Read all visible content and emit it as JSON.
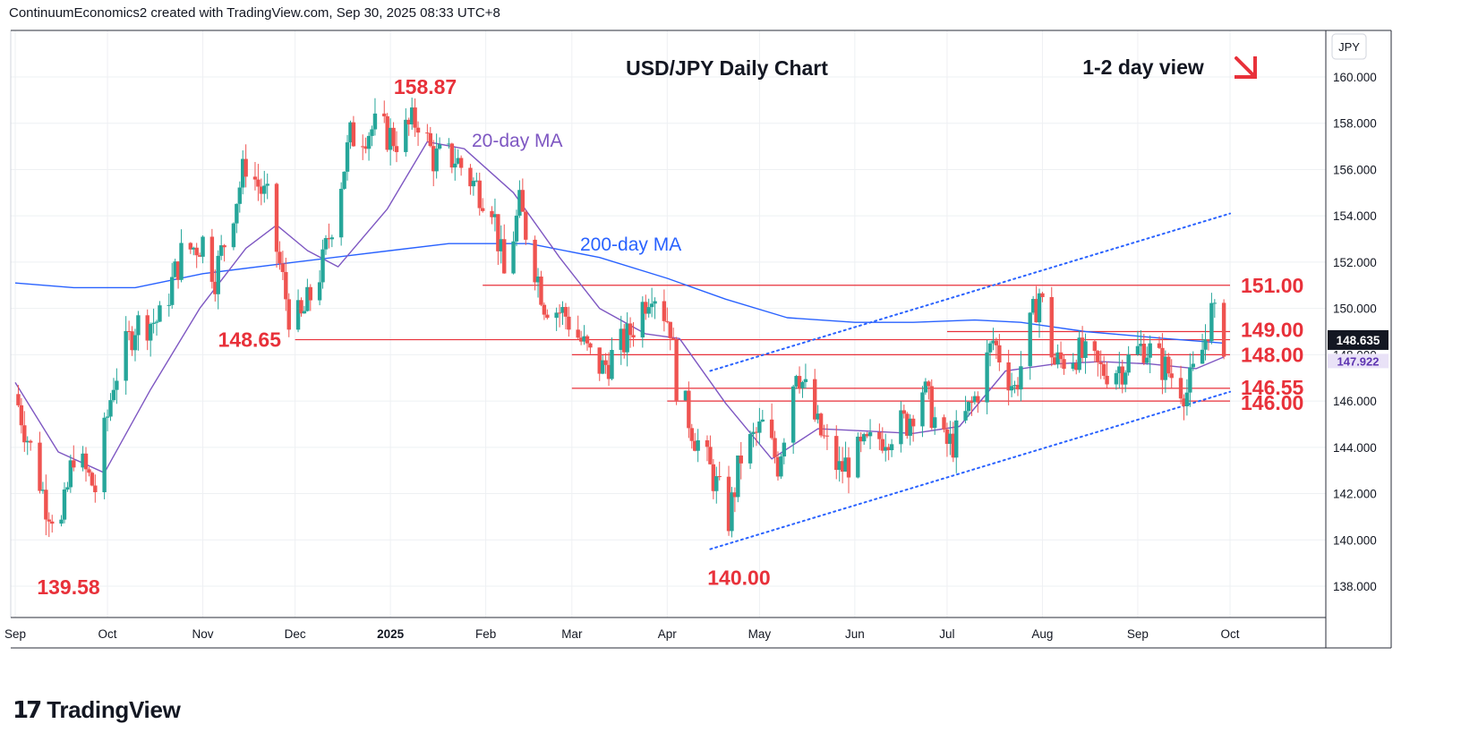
{
  "header": {
    "attribution": "ContinuumEconomics2 created with TradingView.com, Sep 30, 2025 08:33 UTC+8"
  },
  "footer": {
    "brand": "TradingView"
  },
  "colors": {
    "up": "#26a69a",
    "down": "#ef5350",
    "ma20": "#7e57c2",
    "ma200": "#2962ff",
    "level": "#e8313a",
    "label_red": "#e8313a",
    "axis_text": "#131722",
    "grid": "#eef0f3"
  },
  "chart_data": {
    "type": "candlestick",
    "title": "USD/JPY Daily Chart",
    "view_label": "1-2 day view",
    "view_arrow": "down-right-arrow",
    "currency_label": "JPY",
    "ylim": [
      136.5,
      161.5
    ],
    "y_ticks": [
      "138.000",
      "140.000",
      "142.000",
      "144.000",
      "146.000",
      "148.000",
      "150.000",
      "152.000",
      "154.000",
      "156.000",
      "158.000",
      "160.000"
    ],
    "x_ticks": [
      "Sep",
      "Oct",
      "Nov",
      "Dec",
      "2025",
      "Feb",
      "Mar",
      "Apr",
      "May",
      "Jun",
      "Jul",
      "Aug",
      "Sep",
      "Oct"
    ],
    "x_tick_dates": [
      "2024-09-01",
      "2024-10-01",
      "2024-11-01",
      "2024-12-01",
      "2025-01-01",
      "2025-02-01",
      "2025-03-01",
      "2025-04-01",
      "2025-05-01",
      "2025-06-01",
      "2025-07-01",
      "2025-08-01",
      "2025-09-01",
      "2025-10-01"
    ],
    "price_badges": [
      {
        "value": "148.635",
        "color": "#131722",
        "text_color": "#ffffff"
      },
      {
        "value": "147.922",
        "color": "#e9e2f7",
        "text_color": "#5e35b1"
      }
    ],
    "annotations": [
      {
        "text": "158.87",
        "date": "2025-01-10",
        "price": 158.87,
        "kind": "peak"
      },
      {
        "text": "139.58",
        "date": "2024-09-16",
        "price": 139.58,
        "kind": "trough"
      },
      {
        "text": "140.00",
        "date": "2025-04-22",
        "price": 140.0,
        "kind": "trough"
      },
      {
        "text": "148.65",
        "price": 148.65,
        "kind": "level-left"
      },
      {
        "text": "151.00",
        "price": 151.0,
        "kind": "level-right"
      },
      {
        "text": "149.00",
        "price": 149.0,
        "kind": "level-right"
      },
      {
        "text": "148.00",
        "price": 148.0,
        "kind": "level-right"
      },
      {
        "text": "146.55",
        "price": 146.55,
        "kind": "level-right"
      },
      {
        "text": "146.00",
        "price": 146.0,
        "kind": "level-right"
      }
    ],
    "ma_labels": [
      {
        "text": "20-day MA",
        "series": "ma20"
      },
      {
        "text": "200-day MA",
        "series": "ma200"
      }
    ],
    "horizontal_levels": [
      {
        "price": 151.0,
        "start": "2025-01-31",
        "end": "2025-10-01"
      },
      {
        "price": 148.65,
        "start": "2024-12-01",
        "end": "2025-10-01"
      },
      {
        "price": 149.0,
        "start": "2025-07-01",
        "end": "2025-10-01"
      },
      {
        "price": 148.0,
        "start": "2025-03-01",
        "end": "2025-10-01"
      },
      {
        "price": 146.55,
        "start": "2025-03-01",
        "end": "2025-10-01"
      },
      {
        "price": 146.0,
        "start": "2025-04-01",
        "end": "2025-10-01"
      }
    ],
    "trend_lines": [
      {
        "name": "channel-upper",
        "from": {
          "date": "2025-04-15",
          "price": 147.3
        },
        "to": {
          "date": "2025-10-01",
          "price": 154.1
        }
      },
      {
        "name": "channel-lower",
        "from": {
          "date": "2025-04-15",
          "price": 139.6
        },
        "to": {
          "date": "2025-10-01",
          "price": 146.4
        }
      }
    ],
    "price_anchors": [
      {
        "date": "2024-09-01",
        "price": 146.3
      },
      {
        "date": "2024-09-11",
        "price": 141.6
      },
      {
        "date": "2024-09-16",
        "price": 140.6
      },
      {
        "date": "2024-09-20",
        "price": 143.8
      },
      {
        "date": "2024-09-27",
        "price": 142.2
      },
      {
        "date": "2024-10-03",
        "price": 146.9
      },
      {
        "date": "2024-10-10",
        "price": 149.3
      },
      {
        "date": "2024-10-18",
        "price": 149.5
      },
      {
        "date": "2024-10-25",
        "price": 152.3
      },
      {
        "date": "2024-11-01",
        "price": 152.9
      },
      {
        "date": "2024-11-05",
        "price": 151.4
      },
      {
        "date": "2024-11-15",
        "price": 156.3
      },
      {
        "date": "2024-11-22",
        "price": 154.6
      },
      {
        "date": "2024-11-29",
        "price": 149.8
      },
      {
        "date": "2024-12-03",
        "price": 149.5
      },
      {
        "date": "2024-12-10",
        "price": 151.9
      },
      {
        "date": "2024-12-19",
        "price": 157.4
      },
      {
        "date": "2024-12-27",
        "price": 157.8
      },
      {
        "date": "2025-01-03",
        "price": 157.3
      },
      {
        "date": "2025-01-10",
        "price": 158.2
      },
      {
        "date": "2025-01-15",
        "price": 156.5
      },
      {
        "date": "2025-01-22",
        "price": 156.5
      },
      {
        "date": "2025-01-28",
        "price": 155.4
      },
      {
        "date": "2025-02-03",
        "price": 154.6
      },
      {
        "date": "2025-02-07",
        "price": 151.4
      },
      {
        "date": "2025-02-12",
        "price": 154.4
      },
      {
        "date": "2025-02-20",
        "price": 150.3
      },
      {
        "date": "2025-02-27",
        "price": 149.7
      },
      {
        "date": "2025-03-07",
        "price": 147.9
      },
      {
        "date": "2025-03-11",
        "price": 147.4
      },
      {
        "date": "2025-03-19",
        "price": 148.7
      },
      {
        "date": "2025-03-27",
        "price": 151.0
      },
      {
        "date": "2025-04-02",
        "price": 149.3
      },
      {
        "date": "2025-04-04",
        "price": 146.8
      },
      {
        "date": "2025-04-10",
        "price": 144.5
      },
      {
        "date": "2025-04-16",
        "price": 142.7
      },
      {
        "date": "2025-04-21",
        "price": 140.9
      },
      {
        "date": "2025-04-25",
        "price": 143.6
      },
      {
        "date": "2025-05-02",
        "price": 144.9
      },
      {
        "date": "2025-05-07",
        "price": 143.3
      },
      {
        "date": "2025-05-13",
        "price": 147.6
      },
      {
        "date": "2025-05-20",
        "price": 144.8
      },
      {
        "date": "2025-05-27",
        "price": 143.0
      },
      {
        "date": "2025-06-03",
        "price": 143.8
      },
      {
        "date": "2025-06-11",
        "price": 144.6
      },
      {
        "date": "2025-06-18",
        "price": 145.1
      },
      {
        "date": "2025-06-23",
        "price": 146.6
      },
      {
        "date": "2025-06-30",
        "price": 144.1
      },
      {
        "date": "2025-07-03",
        "price": 144.2
      },
      {
        "date": "2025-07-10",
        "price": 146.1
      },
      {
        "date": "2025-07-16",
        "price": 148.6
      },
      {
        "date": "2025-07-23",
        "price": 146.5
      },
      {
        "date": "2025-07-31",
        "price": 150.7
      },
      {
        "date": "2025-08-05",
        "price": 147.6
      },
      {
        "date": "2025-08-12",
        "price": 148.1
      },
      {
        "date": "2025-08-20",
        "price": 147.3
      },
      {
        "date": "2025-08-27",
        "price": 147.5
      },
      {
        "date": "2025-09-03",
        "price": 148.4
      },
      {
        "date": "2025-09-10",
        "price": 147.4
      },
      {
        "date": "2025-09-17",
        "price": 146.4
      },
      {
        "date": "2025-09-22",
        "price": 148.2
      },
      {
        "date": "2025-09-25",
        "price": 149.8
      },
      {
        "date": "2025-09-29",
        "price": 148.6
      }
    ],
    "ma20_points": [
      {
        "date": "2024-09-01",
        "price": 146.8
      },
      {
        "date": "2024-09-15",
        "price": 143.8
      },
      {
        "date": "2024-09-30",
        "price": 142.9
      },
      {
        "date": "2024-10-15",
        "price": 146.5
      },
      {
        "date": "2024-10-31",
        "price": 150.0
      },
      {
        "date": "2024-11-15",
        "price": 152.6
      },
      {
        "date": "2024-11-25",
        "price": 153.6
      },
      {
        "date": "2024-12-05",
        "price": 152.5
      },
      {
        "date": "2024-12-15",
        "price": 151.8
      },
      {
        "date": "2024-12-31",
        "price": 154.3
      },
      {
        "date": "2025-01-13",
        "price": 157.2
      },
      {
        "date": "2025-01-25",
        "price": 156.9
      },
      {
        "date": "2025-02-10",
        "price": 155.0
      },
      {
        "date": "2025-02-25",
        "price": 152.2
      },
      {
        "date": "2025-03-10",
        "price": 150.0
      },
      {
        "date": "2025-03-25",
        "price": 148.9
      },
      {
        "date": "2025-04-05",
        "price": 148.7
      },
      {
        "date": "2025-04-20",
        "price": 145.9
      },
      {
        "date": "2025-05-05",
        "price": 143.5
      },
      {
        "date": "2025-05-20",
        "price": 144.8
      },
      {
        "date": "2025-06-05",
        "price": 144.7
      },
      {
        "date": "2025-06-20",
        "price": 144.6
      },
      {
        "date": "2025-07-05",
        "price": 144.9
      },
      {
        "date": "2025-07-20",
        "price": 147.3
      },
      {
        "date": "2025-08-05",
        "price": 147.6
      },
      {
        "date": "2025-08-20",
        "price": 147.7
      },
      {
        "date": "2025-09-05",
        "price": 147.6
      },
      {
        "date": "2025-09-20",
        "price": 147.4
      },
      {
        "date": "2025-09-29",
        "price": 147.9
      }
    ],
    "ma200_points": [
      {
        "date": "2024-09-01",
        "price": 151.1
      },
      {
        "date": "2024-09-20",
        "price": 150.9
      },
      {
        "date": "2024-10-10",
        "price": 150.9
      },
      {
        "date": "2024-11-01",
        "price": 151.5
      },
      {
        "date": "2024-12-01",
        "price": 152.0
      },
      {
        "date": "2025-01-01",
        "price": 152.5
      },
      {
        "date": "2025-01-20",
        "price": 152.8
      },
      {
        "date": "2025-02-15",
        "price": 152.8
      },
      {
        "date": "2025-03-10",
        "price": 152.2
      },
      {
        "date": "2025-04-01",
        "price": 151.3
      },
      {
        "date": "2025-04-20",
        "price": 150.4
      },
      {
        "date": "2025-05-10",
        "price": 149.6
      },
      {
        "date": "2025-06-01",
        "price": 149.4
      },
      {
        "date": "2025-06-20",
        "price": 149.4
      },
      {
        "date": "2025-07-10",
        "price": 149.5
      },
      {
        "date": "2025-07-25",
        "price": 149.4
      },
      {
        "date": "2025-08-15",
        "price": 149.0
      },
      {
        "date": "2025-09-10",
        "price": 148.7
      },
      {
        "date": "2025-09-29",
        "price": 148.5
      }
    ]
  }
}
